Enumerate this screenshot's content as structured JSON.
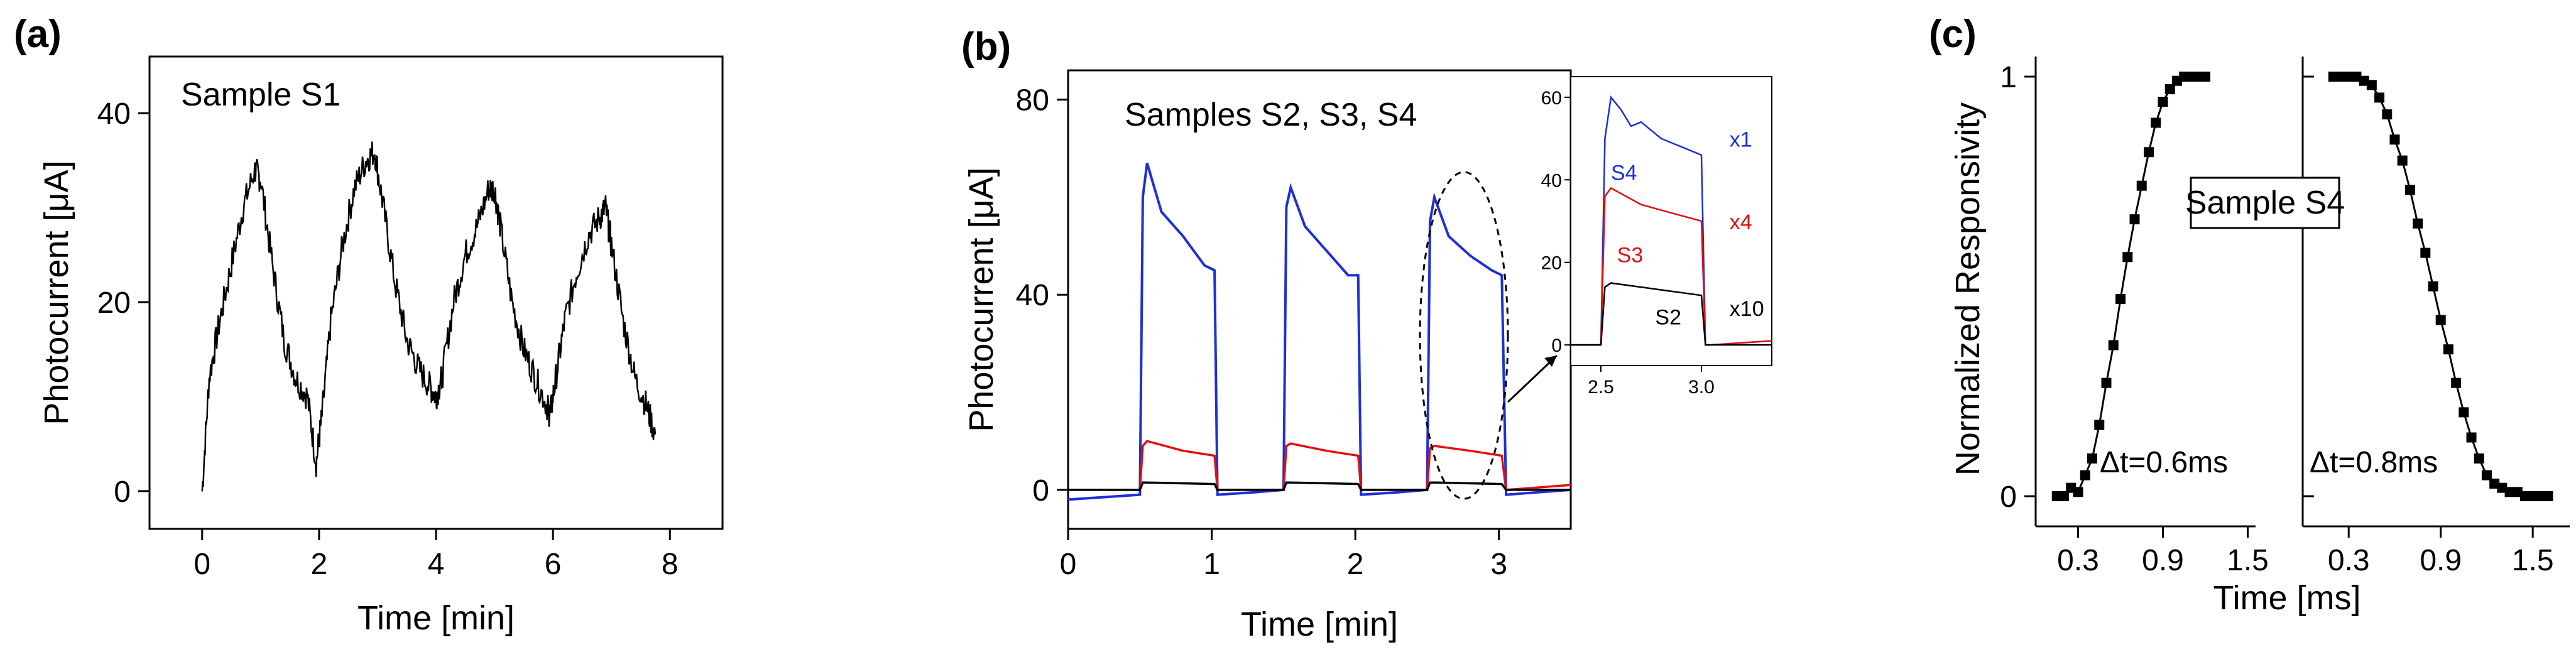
{
  "panels": {
    "a": {
      "letter": "(a)"
    },
    "b": {
      "letter": "(b)"
    },
    "c": {
      "letter": "(c)"
    }
  },
  "chart_data": [
    {
      "id": "a",
      "type": "line",
      "title": "Sample S1",
      "xlabel": "Time [min]",
      "ylabel": "Photocurrent [μA]",
      "xlim": [
        -0.9,
        8.9
      ],
      "ylim": [
        -4,
        46
      ],
      "xticks": [
        0,
        2,
        4,
        6,
        8
      ],
      "xtick_labels": [
        "0",
        "2",
        "4",
        "6",
        "8"
      ],
      "yticks": [
        0,
        20,
        40
      ],
      "ytick_labels": [
        "0",
        "20",
        "40"
      ],
      "series": [
        {
          "name": "S1",
          "color": "#000000",
          "x": [
            0,
            0.12,
            0.3,
            0.5,
            0.7,
            0.9,
            1.0,
            1.2,
            1.4,
            1.6,
            1.8,
            1.95,
            2.05,
            2.2,
            2.4,
            2.6,
            2.8,
            2.95,
            3.1,
            3.3,
            3.5,
            3.7,
            3.9,
            4.0,
            4.1,
            4.3,
            4.5,
            4.7,
            4.9,
            5.0,
            5.1,
            5.3,
            5.5,
            5.7,
            5.9,
            5.95,
            6.05,
            6.2,
            6.4,
            6.6,
            6.8,
            6.9,
            7.0,
            7.2,
            7.4,
            7.6,
            7.75
          ],
          "y": [
            0,
            12,
            18,
            24,
            30,
            34,
            33,
            24,
            16,
            12,
            10,
            3,
            8,
            18,
            26,
            32,
            35,
            36,
            30,
            22,
            16,
            13,
            11,
            10,
            12,
            20,
            25,
            28,
            32,
            32,
            28,
            20,
            15,
            12,
            9,
            8,
            12,
            18,
            23,
            27,
            29,
            30,
            26,
            18,
            12,
            9,
            6
          ]
        }
      ]
    },
    {
      "id": "b",
      "type": "line",
      "title": "Samples S2, S3, S4",
      "xlabel": "Time [min]",
      "ylabel": "Photocurrent [μA]",
      "xlim": [
        0,
        3.5
      ],
      "ylim": [
        -8,
        86
      ],
      "xticks": [
        0,
        1,
        2,
        3
      ],
      "xtick_labels": [
        "0",
        "1",
        "2",
        "3"
      ],
      "yticks": [
        0,
        40,
        80
      ],
      "ytick_labels": [
        "0",
        "40",
        "80"
      ],
      "series": [
        {
          "name": "S4",
          "color": "#1f2fd6",
          "x": [
            0,
            0.5,
            0.52,
            0.55,
            0.65,
            0.8,
            0.95,
            1.02,
            1.04,
            1.3,
            1.5,
            1.52,
            1.55,
            1.65,
            1.8,
            1.95,
            2.02,
            2.04,
            2.3,
            2.5,
            2.52,
            2.55,
            2.65,
            2.8,
            2.95,
            3.02,
            3.05,
            3.5
          ],
          "y": [
            -2,
            -1,
            60,
            67,
            57,
            52,
            46,
            45,
            -1,
            -0.5,
            0,
            58,
            62,
            54,
            49,
            44,
            44,
            -1,
            -0.5,
            0,
            55,
            60,
            52,
            48,
            45,
            44,
            -1,
            0
          ]
        },
        {
          "name": "S3",
          "color": "#e01010",
          "x": [
            0,
            0.5,
            0.52,
            0.55,
            0.8,
            1.02,
            1.04,
            1.5,
            1.52,
            1.55,
            1.8,
            2.02,
            2.04,
            2.5,
            2.52,
            2.55,
            2.8,
            3.02,
            3.05,
            3.5
          ],
          "y": [
            0,
            0,
            9,
            10,
            8,
            7,
            0,
            0,
            9,
            9.5,
            8,
            7,
            0,
            0,
            8.5,
            9,
            8,
            7,
            0,
            1
          ]
        },
        {
          "name": "S2",
          "color": "#000000",
          "x": [
            0,
            0.5,
            0.52,
            0.55,
            1.02,
            1.04,
            1.5,
            1.52,
            1.55,
            2.02,
            2.04,
            2.5,
            2.52,
            2.55,
            3.02,
            3.05,
            3.5
          ],
          "y": [
            0,
            0,
            1.5,
            1.5,
            1.2,
            0,
            0,
            1.5,
            1.5,
            1.2,
            0,
            0,
            1.5,
            1.5,
            1.2,
            0,
            0
          ]
        }
      ],
      "inset": {
        "xlim": [
          2.35,
          3.35
        ],
        "ylim": [
          -5,
          65
        ],
        "xticks": [
          2.5,
          3.0
        ],
        "xtick_labels": [
          "2.5",
          "3.0"
        ],
        "yticks": [
          0,
          20,
          40,
          60
        ],
        "ytick_labels": [
          "0",
          "20",
          "40",
          "60"
        ],
        "series": [
          {
            "name": "S4",
            "scale": "x1",
            "color": "#1f2fd6",
            "x": [
              2.35,
              2.5,
              2.52,
              2.55,
              2.6,
              2.65,
              2.7,
              2.8,
              2.9,
              3.0,
              3.02,
              3.05,
              3.35
            ],
            "y": [
              0,
              0,
              50,
              60,
              57,
              53,
              54,
              50,
              48,
              46,
              0,
              0,
              1
            ]
          },
          {
            "name": "S3",
            "scale": "x4",
            "color": "#e01010",
            "x": [
              2.35,
              2.5,
              2.52,
              2.55,
              2.7,
              2.85,
              3.0,
              3.02,
              3.05,
              3.35
            ],
            "y": [
              0,
              0,
              36,
              38,
              34,
              32,
              30,
              0,
              0,
              1
            ]
          },
          {
            "name": "S2",
            "scale": "x10",
            "color": "#000000",
            "x": [
              2.35,
              2.5,
              2.52,
              2.55,
              2.7,
              2.85,
              3.0,
              3.02,
              3.05,
              3.35
            ],
            "y": [
              0,
              0,
              14,
              15,
              14,
              13,
              12,
              0,
              0,
              0
            ]
          }
        ]
      }
    },
    {
      "id": "c",
      "type": "scatter",
      "title": "Sample S4",
      "xlabel": "Time [ms]",
      "ylabel": "Normalized Responsivity",
      "ylim": [
        -0.05,
        1.05
      ],
      "yticks": [
        0,
        1
      ],
      "ytick_labels": [
        "0",
        "1"
      ],
      "left": {
        "annotation": "Δt=0.6ms",
        "xlim": [
          0.0,
          1.6
        ],
        "xticks": [
          0.3,
          0.9,
          1.5
        ],
        "xtick_labels": [
          "0.3",
          "0.9",
          "1.5"
        ],
        "x": [
          0.15,
          0.2,
          0.25,
          0.3,
          0.35,
          0.4,
          0.45,
          0.5,
          0.55,
          0.6,
          0.65,
          0.7,
          0.75,
          0.8,
          0.85,
          0.9,
          0.95,
          1.0,
          1.05,
          1.1,
          1.15,
          1.2
        ],
        "y": [
          0.0,
          0.0,
          0.02,
          0.01,
          0.05,
          0.09,
          0.17,
          0.27,
          0.36,
          0.47,
          0.57,
          0.66,
          0.74,
          0.82,
          0.89,
          0.94,
          0.97,
          0.99,
          1.0,
          1.0,
          1.0,
          1.0
        ]
      },
      "right": {
        "annotation": "Δt=0.8ms",
        "xlim": [
          0.0,
          1.7
        ],
        "xticks": [
          0.3,
          0.9,
          1.5
        ],
        "xtick_labels": [
          "0.3",
          "0.9",
          "1.5"
        ],
        "x": [
          0.2,
          0.25,
          0.3,
          0.35,
          0.4,
          0.45,
          0.5,
          0.55,
          0.6,
          0.65,
          0.7,
          0.75,
          0.8,
          0.85,
          0.9,
          0.95,
          1.0,
          1.05,
          1.1,
          1.15,
          1.2,
          1.25,
          1.3,
          1.35,
          1.4,
          1.45,
          1.5,
          1.55,
          1.6
        ],
        "y": [
          1.0,
          1.0,
          1.0,
          1.0,
          0.99,
          0.98,
          0.95,
          0.91,
          0.85,
          0.8,
          0.73,
          0.65,
          0.58,
          0.5,
          0.42,
          0.35,
          0.27,
          0.2,
          0.14,
          0.09,
          0.05,
          0.03,
          0.02,
          0.01,
          0.01,
          0.0,
          0.0,
          0.0,
          0.0
        ]
      }
    }
  ]
}
